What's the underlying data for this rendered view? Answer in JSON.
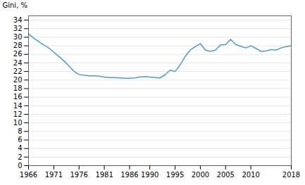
{
  "chart_data": {
    "type": "line",
    "ylabel": "Gini, %",
    "x": [
      1966,
      1967,
      1968,
      1969,
      1970,
      1971,
      1972,
      1973,
      1974,
      1975,
      1976,
      1977,
      1978,
      1979,
      1980,
      1981,
      1982,
      1983,
      1984,
      1985,
      1986,
      1987,
      1988,
      1989,
      1990,
      1991,
      1992,
      1993,
      1994,
      1995,
      1996,
      1997,
      1998,
      1999,
      2000,
      2001,
      2002,
      2003,
      2004,
      2005,
      2006,
      2007,
      2008,
      2009,
      2010,
      2011,
      2012,
      2013,
      2014,
      2015,
      2016,
      2017,
      2018
    ],
    "values": [
      30.8,
      29.8,
      29.0,
      28.2,
      27.5,
      26.5,
      25.5,
      24.5,
      23.3,
      22.0,
      21.3,
      21.1,
      21.0,
      21.0,
      20.9,
      20.7,
      20.6,
      20.6,
      20.5,
      20.4,
      20.4,
      20.5,
      20.7,
      20.8,
      20.7,
      20.6,
      20.5,
      21.2,
      22.3,
      22.0,
      23.5,
      25.5,
      27.0,
      27.8,
      28.5,
      27.0,
      26.7,
      27.0,
      28.2,
      28.3,
      29.5,
      28.3,
      27.9,
      27.5,
      28.0,
      27.4,
      26.7,
      26.8,
      27.1,
      27.0,
      27.5,
      27.8,
      28.0
    ],
    "color": "#4f9dc8",
    "xlim": [
      1966,
      2018
    ],
    "xticks": [
      1966,
      1971,
      1976,
      1981,
      1986,
      1990,
      1995,
      2000,
      2005,
      2010,
      2018
    ],
    "ylim": [
      0,
      35
    ],
    "yticks": [
      0,
      2,
      4,
      6,
      8,
      10,
      12,
      14,
      16,
      18,
      20,
      22,
      24,
      26,
      28,
      30,
      32,
      34
    ],
    "grid": true
  }
}
